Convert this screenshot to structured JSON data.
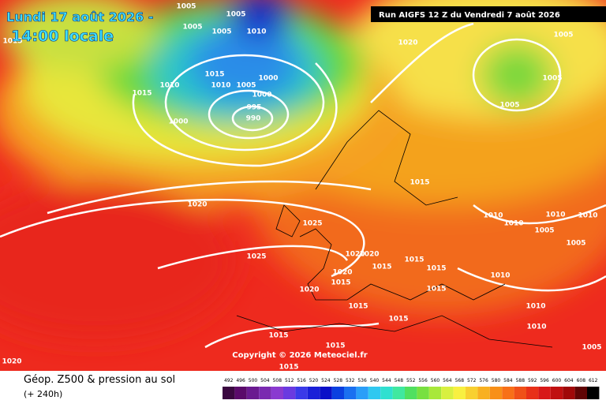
{
  "header": {
    "title": "Lundi 17 août 2026 -",
    "subtitle": "14:00 locale",
    "run": "Run AIGFS 12 Z du Vendredi 7 août 2026"
  },
  "map": {
    "copyright": "Copyright © 2026 Meteociel.fr",
    "isobar_labels": [
      "1005",
      "1005",
      "1005",
      "1010",
      "1005",
      "1015",
      "1010",
      "1015",
      "1010",
      "1005",
      "1000",
      "1000",
      "995",
      "990",
      "1000",
      "1020",
      "1005",
      "1005",
      "1005",
      "1020",
      "1025",
      "1025",
      "1015",
      "1010",
      "1010",
      "1010",
      "1010",
      "1005",
      "1005",
      "1020",
      "1020",
      "1015",
      "1015",
      "1015",
      "1020",
      "1015",
      "1015",
      "1010",
      "1020",
      "1015",
      "1015",
      "1010",
      "1015",
      "1015",
      "1015",
      "1020",
      "1005",
      "1010",
      "1015"
    ]
  },
  "legend": {
    "title": "Géop. Z500 & pression au sol",
    "lead": "(+ 240h)",
    "scale": [
      492,
      496,
      500,
      504,
      508,
      512,
      516,
      520,
      524,
      528,
      532,
      536,
      540,
      544,
      548,
      552,
      556,
      560,
      564,
      568,
      572,
      576,
      580,
      584,
      588,
      592,
      596,
      600,
      604,
      608,
      612
    ]
  }
}
